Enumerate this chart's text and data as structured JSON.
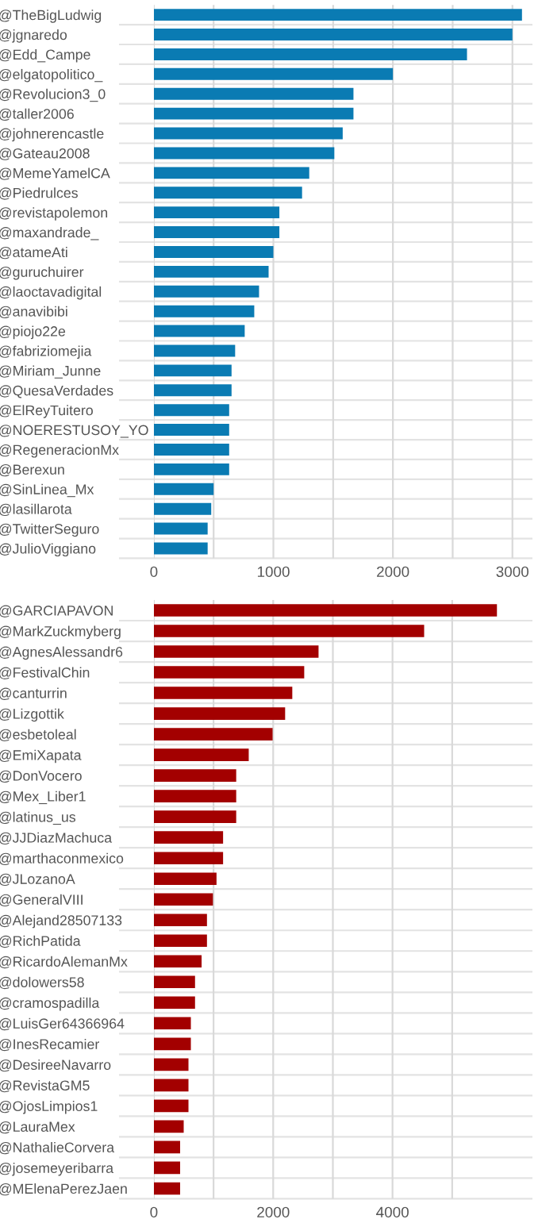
{
  "chart_data": [
    {
      "type": "bar",
      "orientation": "horizontal",
      "grid": true,
      "categories": [
        "@TheBigLudwig",
        "@jgnaredo",
        "@Edd_Campe",
        "@elgatopolitico_",
        "@Revolucion3_0",
        "@taller2006",
        "@johnerencastle",
        "@Gateau2008",
        "@MemeYamelCA",
        "@Piedrulces",
        "@revistapolemon",
        "@maxandrade_",
        "@atameAti",
        "@guruchuirer",
        "@laoctavadigital",
        "@anavibibi",
        "@piojo22e",
        "@fabriziomejia",
        "@Miriam_Junne",
        "@QuesaVerdades",
        "@ElReyTuitero",
        "@NOERESTUSOY_YO",
        "@RegeneracionMx",
        "@Berexun",
        "@SinLinea_Mx",
        "@lasillarota",
        "@TwitterSeguro",
        "@JulioViggiano"
      ],
      "values": [
        3080,
        3000,
        2620,
        2000,
        1670,
        1670,
        1580,
        1510,
        1300,
        1240,
        1050,
        1050,
        1000,
        960,
        880,
        840,
        760,
        680,
        650,
        650,
        630,
        630,
        630,
        630,
        500,
        480,
        450,
        450
      ],
      "color": "#0a7bb3",
      "xlim": [
        0,
        3160
      ],
      "xticks": [
        0,
        {
          "value": 500,
          "label": null
        },
        1000,
        {
          "value": 1500,
          "label": null
        },
        2000,
        {
          "value": 2500,
          "label": null
        },
        3000
      ]
    },
    {
      "type": "bar",
      "orientation": "horizontal",
      "grid": true,
      "categories": [
        "@GARCIAPAVON",
        "@MarkZuckmyberg",
        "@AgnesAlessandr6",
        "@FestivalChin",
        "@canturrin",
        "@Lizgottik",
        "@esbetoleal",
        "@EmiXapata",
        "@DonVocero",
        "@Mex_Liber1",
        "@latinus_us",
        "@JJDiazMachuca",
        "@marthaconmexico",
        "@JLozanoA",
        "@GeneralVIII",
        "@Alejand28507133",
        "@RichPatida",
        "@RicardoAlemanMx",
        "@dolowers58",
        "@cramospadilla",
        "@LuisGer64366964",
        "@InesRecamier",
        "@DesireeNavarro",
        "@RevistaGM5",
        "@OjosLimpios1",
        "@LauraMex",
        "@NathalieCorvera",
        "@josemeyeribarra",
        "@MElenaPerezJaen"
      ],
      "values": [
        5750,
        4530,
        2760,
        2520,
        2320,
        2200,
        1990,
        1590,
        1380,
        1380,
        1380,
        1160,
        1160,
        1050,
        990,
        890,
        890,
        800,
        690,
        690,
        620,
        620,
        580,
        580,
        580,
        500,
        440,
        440,
        440
      ],
      "color": "#a30000",
      "xlim": [
        0,
        6330
      ],
      "xticks": [
        0,
        {
          "value": 1000,
          "label": null
        },
        2000,
        {
          "value": 3000,
          "label": null
        },
        4000,
        {
          "value": 5000,
          "label": null
        }
      ]
    }
  ]
}
